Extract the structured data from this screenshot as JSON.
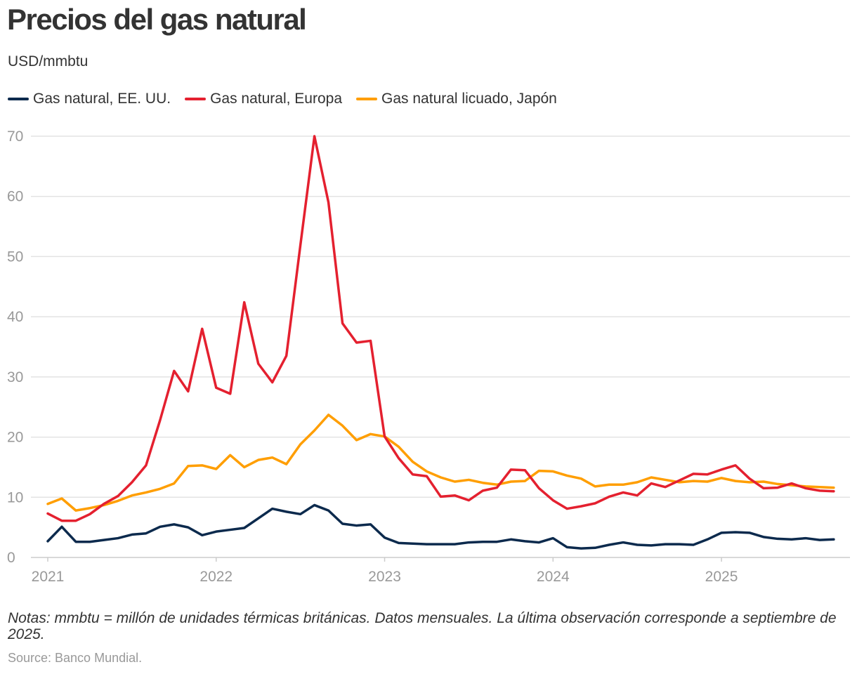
{
  "chart_data": {
    "type": "line",
    "title": "Precios del gas natural",
    "subtitle": "USD/mmbtu",
    "xlabel": "",
    "ylabel": "USD/mmbtu",
    "ylim": [
      0,
      70
    ],
    "yticks": [
      0,
      10,
      20,
      30,
      40,
      50,
      60,
      70
    ],
    "xtick_labels": [
      "2021",
      "2022",
      "2023",
      "2024",
      "2025"
    ],
    "grid": true,
    "legend_position": "top-left",
    "x_start": "2021-01",
    "x_end": "2025-09",
    "series": [
      {
        "name": "Gas natural, EE. UU.",
        "color": "#0c2a4d",
        "values": [
          2.7,
          5.1,
          2.6,
          2.6,
          2.9,
          3.2,
          3.8,
          4.0,
          5.1,
          5.5,
          5.0,
          3.7,
          4.3,
          4.6,
          4.9,
          6.5,
          8.1,
          7.6,
          7.2,
          8.7,
          7.8,
          5.6,
          5.3,
          5.5,
          3.3,
          2.4,
          2.3,
          2.2,
          2.2,
          2.2,
          2.5,
          2.6,
          2.6,
          3.0,
          2.7,
          2.5,
          3.2,
          1.7,
          1.5,
          1.6,
          2.1,
          2.5,
          2.1,
          2.0,
          2.2,
          2.2,
          2.1,
          3.0,
          4.1,
          4.2,
          4.1,
          3.4,
          3.1,
          3.0,
          3.2,
          2.9,
          3.0
        ]
      },
      {
        "name": "Gas natural, Europa",
        "color": "#e4202f",
        "values": [
          7.3,
          6.1,
          6.1,
          7.2,
          8.9,
          10.2,
          12.5,
          15.3,
          22.8,
          31.0,
          27.6,
          38.0,
          28.2,
          27.2,
          42.4,
          32.2,
          29.1,
          33.5,
          51.9,
          70.0,
          59.0,
          38.9,
          35.7,
          36.0,
          20.1,
          16.5,
          13.8,
          13.5,
          10.1,
          10.3,
          9.5,
          11.1,
          11.6,
          14.6,
          14.5,
          11.5,
          9.5,
          8.1,
          8.5,
          9.0,
          10.1,
          10.8,
          10.3,
          12.3,
          11.7,
          12.8,
          13.9,
          13.8,
          14.6,
          15.3,
          13.1,
          11.5,
          11.6,
          12.3,
          11.5,
          11.1,
          11.0
        ]
      },
      {
        "name": "Gas natural licuado, Japón",
        "color": "#ff9e00",
        "values": [
          8.9,
          9.8,
          7.8,
          8.2,
          8.7,
          9.4,
          10.3,
          10.8,
          11.4,
          12.3,
          15.2,
          15.3,
          14.7,
          17.0,
          15.0,
          16.2,
          16.6,
          15.5,
          18.8,
          21.1,
          23.7,
          21.9,
          19.5,
          20.5,
          20.1,
          18.4,
          15.9,
          14.3,
          13.3,
          12.6,
          12.9,
          12.4,
          12.1,
          12.6,
          12.7,
          14.4,
          14.3,
          13.6,
          13.1,
          11.8,
          12.1,
          12.1,
          12.5,
          13.3,
          12.9,
          12.5,
          12.7,
          12.6,
          13.2,
          12.7,
          12.5,
          12.6,
          12.2,
          12.0,
          11.8,
          11.7,
          11.6
        ]
      }
    ]
  },
  "notes": "Notas: mmbtu = millón de unidades térmicas británicas. Datos mensuales. La última observación corresponde a septiembre de 2025.",
  "source": "Source: Banco Mundial."
}
